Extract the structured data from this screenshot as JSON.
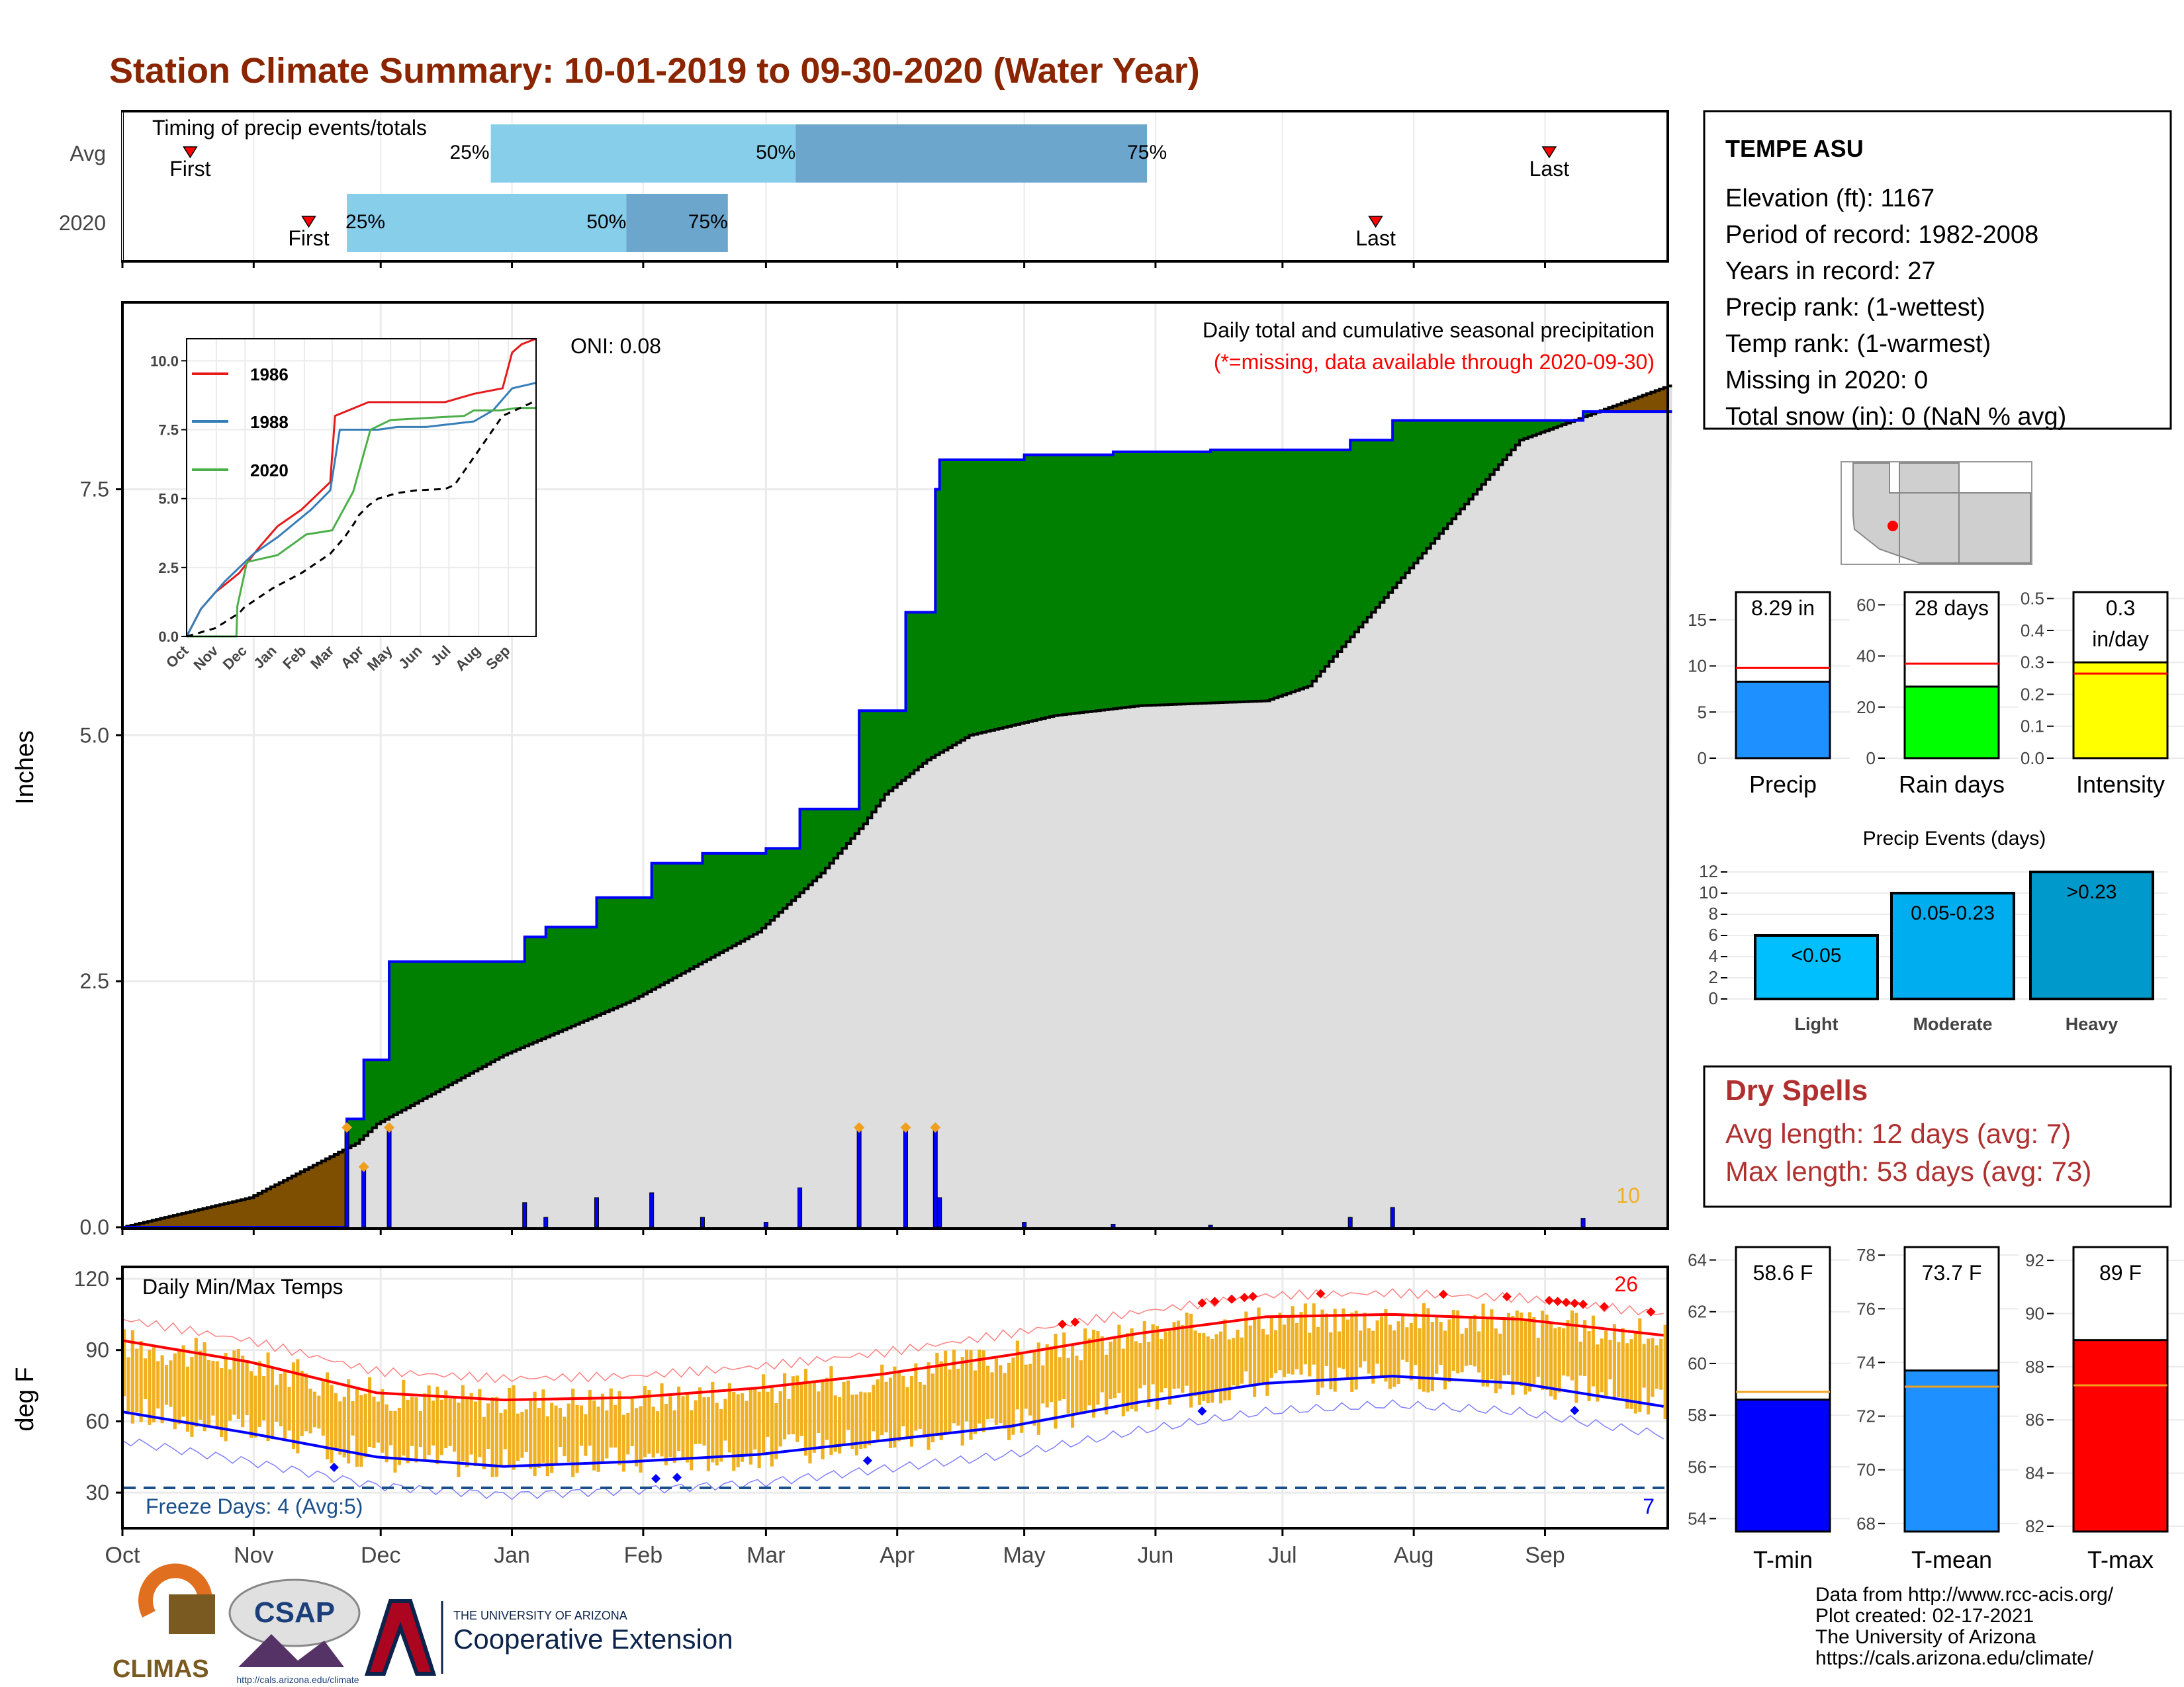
{
  "title": "Station Climate Summary: 10-01-2019 to 09-30-2020 (Water Year)",
  "colors": {
    "title": "#8B2500",
    "water_green": "#008000",
    "brown": "#7f4f00",
    "gray_fill": "#dedede",
    "blue": "#0000ff",
    "orange": "#f0b020",
    "red": "#ff0000"
  },
  "timing": {
    "title": "Timing of precip events/totals",
    "rows": [
      {
        "label": "Avg",
        "first_day": 16,
        "last_day": 337,
        "p25_day": 87,
        "p50_day": 159,
        "p75_day": 242
      },
      {
        "label": "2020",
        "first_day": 44,
        "last_day": 296,
        "p25_day": 53,
        "p50_day": 119,
        "p75_day": 143
      }
    ],
    "first_label": "First",
    "last_label": "Last",
    "pct_labels": [
      "25%",
      "50%",
      "75%"
    ]
  },
  "months": [
    "Oct",
    "Nov",
    "Dec",
    "Jan",
    "Feb",
    "Mar",
    "Apr",
    "May",
    "Jun",
    "Jul",
    "Aug",
    "Sep"
  ],
  "main": {
    "ylabel": "Inches",
    "yticks": [
      "0.0",
      "2.5",
      "5.0",
      "7.5"
    ],
    "oni": "ONI: 0.08",
    "legend_title": "Daily total and cumulative seasonal precipitation",
    "legend_note": "(*=missing, data available through 2020-09-30)",
    "count_label": "10"
  },
  "inset": {
    "yticks": [
      "0.0",
      "2.5",
      "5.0",
      "7.5",
      "10.0"
    ],
    "legend": [
      "1986",
      "1988",
      "2020"
    ],
    "legend_colors": [
      "#e41a1c",
      "#377eb8",
      "#4daf4a"
    ]
  },
  "temps": {
    "title": "Daily Min/Max Temps",
    "ylabel": "deg F",
    "yticks": [
      "30",
      "60",
      "90",
      "120"
    ],
    "freeze": "Freeze Days: 4 (Avg:5)",
    "count_hot": "26",
    "count_cold": "7"
  },
  "station": {
    "name": "TEMPE ASU",
    "lines": [
      "Elevation (ft): 1167",
      "Period of record: 1982-2008",
      "Years in record: 27",
      "Precip rank:  (1-wettest)",
      "Temp rank:  (1-warmest)",
      "Missing in 2020: 0",
      "Total snow (in): 0 (NaN % avg)"
    ]
  },
  "mini_bars": [
    {
      "label": "Precip",
      "value_text": "8.29 in",
      "value": 8.29,
      "avg": 9.8,
      "ymax": 18,
      "ticks": [
        "0",
        "5",
        "10",
        "15"
      ],
      "tickvals": [
        0,
        5,
        10,
        15
      ],
      "color": "#1e90ff"
    },
    {
      "label": "Rain days",
      "value_text": "28 days",
      "value": 28,
      "avg": 37,
      "ymax": 65,
      "ticks": [
        "0",
        "20",
        "40",
        "60"
      ],
      "tickvals": [
        0,
        20,
        40,
        60
      ],
      "color": "#00ff00"
    },
    {
      "label": "Intensity",
      "value_text": "0.3 in/day",
      "value": 0.3,
      "avg": 0.265,
      "ymax": 0.52,
      "ticks": [
        "0.0",
        "0.1",
        "0.2",
        "0.3",
        "0.4",
        "0.5"
      ],
      "tickvals": [
        0,
        0.1,
        0.2,
        0.3,
        0.4,
        0.5
      ],
      "color": "#ffff00"
    }
  ],
  "events": {
    "title": "Precip Events (days)",
    "categories": [
      "Light",
      "Moderate",
      "Heavy"
    ],
    "labels": [
      "<0.05",
      "0.05-0.23",
      ">0.23"
    ],
    "values": [
      6,
      10,
      12
    ],
    "colors": [
      "#00bfff",
      "#00aeef",
      "#0099cc"
    ],
    "yticks": [
      "0",
      "2",
      "4",
      "6",
      "8",
      "10",
      "12"
    ]
  },
  "dry": {
    "title": "Dry Spells",
    "avg": "Avg length: 12 days (avg: 7)",
    "max": "Max length: 53 days (avg: 73)"
  },
  "temp_bars": [
    {
      "label": "T-min",
      "value_text": "58.6 F",
      "value": 58.6,
      "avg": 58.9,
      "ymin": 53.5,
      "ymax": 64.5,
      "ticks": [
        "54",
        "56",
        "58",
        "60",
        "62",
        "64"
      ],
      "tickvals": [
        54,
        56,
        58,
        60,
        62,
        64
      ],
      "color": "#0000ff"
    },
    {
      "label": "T-mean",
      "value_text": "73.7 F",
      "value": 73.7,
      "avg": 73.1,
      "ymin": 67.7,
      "ymax": 78.3,
      "ticks": [
        "68",
        "70",
        "72",
        "74",
        "76",
        "78"
      ],
      "tickvals": [
        68,
        70,
        72,
        74,
        76,
        78
      ],
      "color": "#1e90ff"
    },
    {
      "label": "T-max",
      "value_text": "89 F",
      "value": 89.0,
      "avg": 87.3,
      "ymin": 81.8,
      "ymax": 92.5,
      "ticks": [
        "82",
        "84",
        "86",
        "88",
        "90",
        "92"
      ],
      "tickvals": [
        82,
        84,
        86,
        88,
        90,
        92
      ],
      "color": "#ff0000"
    }
  ],
  "footer": {
    "credits": [
      "Data from http://www.rcc-acis.org/",
      "Plot created: 02-17-2021",
      "The University of Arizona",
      "https://cals.arizona.edu/climate/"
    ],
    "climas": "CLIMAS",
    "csap": "CSAP",
    "csap_url": "http://cals.arizona.edu/climate",
    "ua_small": "THE UNIVERSITY OF ARIZONA",
    "ua_big": "Cooperative Extension"
  },
  "chart_data": [
    {
      "type": "area",
      "title": "Daily total and cumulative seasonal precipitation",
      "ylabel": "Inches",
      "ylim": [
        0,
        9.4
      ],
      "x_unit": "day of water year (0 = Oct 1)",
      "series": [
        {
          "name": "2020",
          "x": [
            0,
            52,
            53,
            57,
            63,
            95,
            100,
            112,
            125,
            137,
            152,
            160,
            174,
            185,
            192,
            193,
            213,
            234,
            257,
            272,
            290,
            300,
            327,
            345,
            365
          ],
          "y": [
            0,
            0,
            1.1,
            1.7,
            2.7,
            2.95,
            3.05,
            3.35,
            3.7,
            3.8,
            3.85,
            4.25,
            5.25,
            6.25,
            7.5,
            7.8,
            7.85,
            7.88,
            7.9,
            7.9,
            8.0,
            8.2,
            8.2,
            8.29,
            8.29
          ]
        },
        {
          "name": "Avg",
          "x": [
            0,
            30,
            55,
            60,
            90,
            120,
            150,
            165,
            175,
            180,
            190,
            200,
            220,
            240,
            270,
            280,
            300,
            330,
            365
          ],
          "y": [
            0,
            0.3,
            0.85,
            1.05,
            1.75,
            2.3,
            3.0,
            3.6,
            4.1,
            4.4,
            4.75,
            5.0,
            5.2,
            5.3,
            5.35,
            5.5,
            6.5,
            8.0,
            8.55
          ]
        }
      ]
    },
    {
      "type": "bar",
      "title": "Daily Min/Max Temps",
      "ylabel": "deg F",
      "ylim": [
        15,
        125
      ],
      "series": [
        {
          "name": "Avg max",
          "x": [
            0,
            30,
            60,
            90,
            120,
            150,
            180,
            210,
            240,
            270,
            300,
            330,
            365
          ],
          "y": [
            94,
            85,
            72,
            69,
            70,
            74,
            80,
            88,
            97,
            104,
            105,
            103,
            96
          ]
        },
        {
          "name": "Avg min",
          "x": [
            0,
            30,
            60,
            90,
            120,
            150,
            180,
            210,
            240,
            270,
            300,
            330,
            365
          ],
          "y": [
            64,
            55,
            45,
            41,
            43,
            46,
            52,
            58,
            68,
            76,
            79,
            76,
            66
          ]
        }
      ]
    }
  ]
}
